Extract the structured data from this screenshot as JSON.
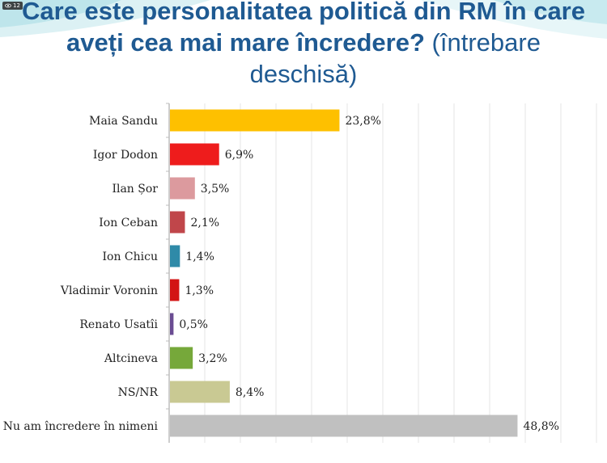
{
  "overlay": {
    "view_count": "12"
  },
  "title": {
    "line1": "Care este personalitatea politică din RM în care",
    "line2_bold": "aveți cea mai mare încredere?",
    "line2_light": " (întrebare",
    "line3_light": "deschisă)"
  },
  "colors": {
    "title": "#1f5a92",
    "decoration": "#8fd3dd"
  },
  "chart_data": {
    "type": "bar",
    "orientation": "horizontal",
    "categories": [
      "Maia Sandu",
      "Igor Dodon",
      "Ilan Șor",
      "Ion Ceban",
      "Ion Chicu",
      "Vladimir Voronin",
      "Renato Usatîi",
      "Altcineva",
      "NS/NR",
      "Nu am încredere în nimeni"
    ],
    "values": [
      23.8,
      6.9,
      3.5,
      2.1,
      1.4,
      1.3,
      0.5,
      3.2,
      8.4,
      48.8
    ],
    "value_labels": [
      "23,8%",
      "6,9%",
      "3,5%",
      "2,1%",
      "1,4%",
      "1,3%",
      "0,5%",
      "3,2%",
      "8,4%",
      "48,8%"
    ],
    "bar_colors": [
      "#fec000",
      "#ee1c1c",
      "#dc9a9e",
      "#c0464a",
      "#2f8aa8",
      "#d31414",
      "#6a4c92",
      "#76a83a",
      "#c9c993",
      "#c0c0c0"
    ],
    "xlim": [
      0,
      50
    ],
    "grid": true
  }
}
